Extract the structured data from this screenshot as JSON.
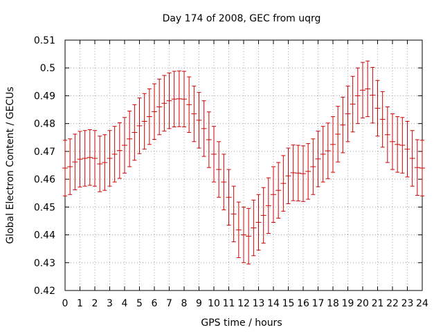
{
  "chart_data": {
    "type": "line",
    "title": "Day 174 of 2008, GEC from uqrg",
    "xlabel": "GPS time / hours",
    "ylabel": "Global Electron Content / GECUs",
    "xlim": [
      0,
      24
    ],
    "ylim": [
      0.42,
      0.51
    ],
    "xticks": [
      "0",
      "1",
      "2",
      "3",
      "4",
      "5",
      "6",
      "7",
      "8",
      "9",
      "10",
      "11",
      "12",
      "13",
      "14",
      "15",
      "16",
      "17",
      "18",
      "19",
      "20",
      "21",
      "22",
      "23",
      "24"
    ],
    "yticks": [
      "0.42",
      "0.43",
      "0.44",
      "0.45",
      "0.46",
      "0.47",
      "0.48",
      "0.49",
      "0.5",
      "0.51"
    ],
    "grid": true,
    "grid_style": "dotted",
    "series_color": "#cc0000",
    "error_bar": 0.01,
    "series": [
      {
        "x": [
          0,
          0.333,
          0.667,
          1,
          1.333,
          1.667,
          2,
          2.333,
          2.667,
          3,
          3.333,
          3.667,
          4,
          4.333,
          4.667,
          5,
          5.333,
          5.667,
          6,
          6.333,
          6.667,
          7,
          7.333,
          7.667,
          8,
          8.333,
          8.667,
          9,
          9.333,
          9.667,
          10,
          10.333,
          10.667,
          11,
          11.333,
          11.667,
          12,
          12.333,
          12.667,
          13,
          13.333,
          13.667,
          14,
          14.333,
          14.667,
          15,
          15.333,
          15.667,
          16,
          16.333,
          16.667,
          17,
          17.333,
          17.667,
          18,
          18.333,
          18.667,
          19,
          19.333,
          19.667,
          20,
          20.333,
          20.667,
          21,
          21.333,
          21.667,
          22,
          22.333,
          22.667,
          23,
          23.333,
          23.667,
          24
        ],
        "y": [
          0.464,
          0.4645,
          0.4662,
          0.4672,
          0.4675,
          0.4678,
          0.4675,
          0.4655,
          0.466,
          0.4675,
          0.469,
          0.4703,
          0.4722,
          0.4745,
          0.4768,
          0.4792,
          0.4808,
          0.4825,
          0.4843,
          0.486,
          0.4873,
          0.4882,
          0.4888,
          0.4889,
          0.4888,
          0.4868,
          0.4835,
          0.4812,
          0.4782,
          0.4742,
          0.469,
          0.4635,
          0.459,
          0.4535,
          0.4475,
          0.4418,
          0.44,
          0.4395,
          0.4425,
          0.4445,
          0.447,
          0.4505,
          0.4545,
          0.456,
          0.4585,
          0.4612,
          0.4623,
          0.4622,
          0.462,
          0.4628,
          0.4645,
          0.4673,
          0.469,
          0.4702,
          0.4725,
          0.4762,
          0.4795,
          0.4835,
          0.487,
          0.49,
          0.492,
          0.4925,
          0.4902,
          0.4855,
          0.4815,
          0.476,
          0.4735,
          0.4725,
          0.4722,
          0.4708,
          0.4675,
          0.4642,
          0.464
        ]
      }
    ]
  }
}
